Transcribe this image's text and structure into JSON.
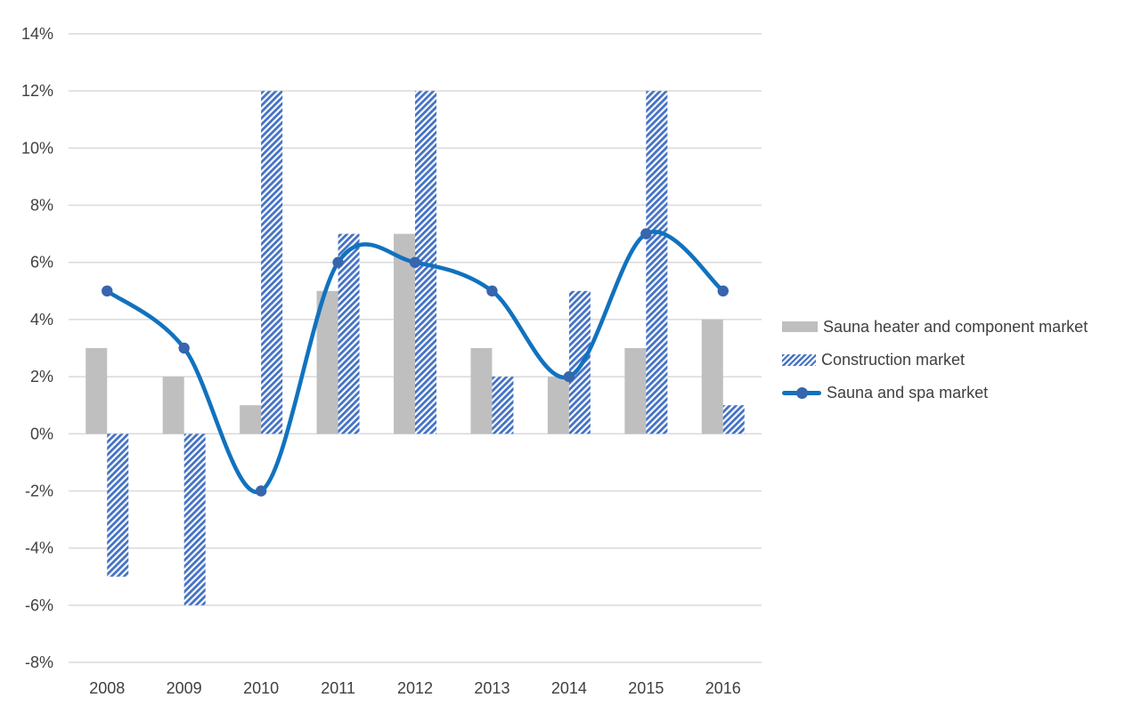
{
  "chart": {
    "title": "",
    "background": "#FFFFFF",
    "colors": {
      "gray_bar": "#BFBFBF",
      "hatch_blue": "#4472C4",
      "line_blue": "#1172BE",
      "marker_blue": "#3765AE",
      "grid": "#D9D9D9",
      "text": "#404040"
    },
    "y_axis": {
      "min": -8,
      "max": 14,
      "step": 2,
      "tick_labels": [
        "14%",
        "12%",
        "10%",
        "8%",
        "6%",
        "4%",
        "2%",
        "0%",
        "-2%",
        "-4%",
        "-6%",
        "-8%"
      ]
    },
    "x_axis": {
      "labels": [
        "2008",
        "2009",
        "2010",
        "2011",
        "2012",
        "2013",
        "2014",
        "2015",
        "2016"
      ]
    },
    "legend": {
      "position": "right",
      "items": [
        {
          "label": "Sauna heater and component market",
          "swatch": "solid-gray-bar"
        },
        {
          "label": "Construction market",
          "swatch": "hatched-blue-bar"
        },
        {
          "label": "Sauna and spa market",
          "swatch": "blue-line-with-marker"
        }
      ]
    }
  },
  "chart_data": {
    "type": "combo",
    "categories": [
      "2008",
      "2009",
      "2010",
      "2011",
      "2012",
      "2013",
      "2014",
      "2015",
      "2016"
    ],
    "series": [
      {
        "name": "Sauna heater and component market",
        "type": "bar",
        "style": "solid-gray",
        "values": [
          3,
          2,
          1,
          5,
          7,
          3,
          2,
          3,
          4
        ]
      },
      {
        "name": "Construction market",
        "type": "bar",
        "style": "hatched-blue-diagonal",
        "values": [
          -5,
          -6,
          12,
          7,
          12,
          2,
          5,
          12,
          1
        ]
      },
      {
        "name": "Sauna and spa market",
        "type": "line",
        "style": "smooth-blue-with-round-markers",
        "values": [
          5,
          3,
          -2,
          6,
          6,
          5,
          2,
          7,
          5
        ]
      }
    ],
    "ylim": [
      -8,
      14
    ],
    "value_format": "percent",
    "grid": true,
    "legend_position": "right"
  }
}
